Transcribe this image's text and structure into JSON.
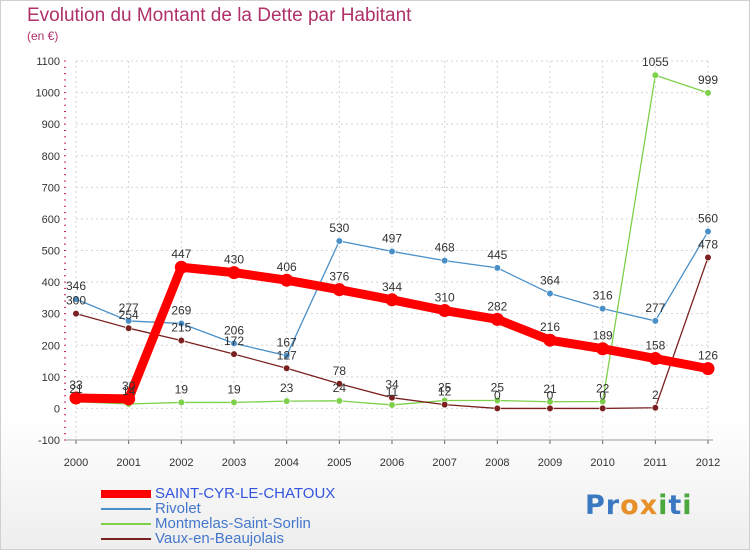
{
  "header": {
    "title": "Evolution du Montant de la Dette par Habitant",
    "subtitle": "(en €)"
  },
  "logo": {
    "text": "Proxiti",
    "letters": [
      "P",
      "r",
      "o",
      "x",
      "i",
      "t",
      "i"
    ],
    "letter_colors": [
      "#3a78c2",
      "#3a78c2",
      "#e7902a",
      "#e7902a",
      "#4aa83d",
      "#3a78c2",
      "#4aa83d"
    ]
  },
  "chart_data": {
    "type": "line",
    "title": "Evolution du Montant de la Dette par Habitant",
    "subtitle": "(en €)",
    "xlabel": "",
    "ylabel": "",
    "x": [
      "2000",
      "2001",
      "2002",
      "2003",
      "2004",
      "2005",
      "2006",
      "2007",
      "2008",
      "2009",
      "2010",
      "2011",
      "2012"
    ],
    "y_ticks": [
      "-100",
      "0",
      "100",
      "200",
      "300",
      "400",
      "500",
      "600",
      "700",
      "800",
      "900",
      "1000",
      "1100"
    ],
    "ylim": [
      -100,
      1100
    ],
    "grid": true,
    "legend_position": "bottom-left",
    "series": [
      {
        "name": "SAINT-CYR-LE-CHATOUX",
        "color": "#ff0000",
        "thick": true,
        "values": [
          33,
          30,
          447,
          430,
          406,
          376,
          344,
          310,
          282,
          216,
          189,
          158,
          126
        ],
        "labels": [
          "33",
          "30",
          "447",
          "430",
          "406",
          "376",
          "344",
          "310",
          "282",
          "216",
          "189",
          "158",
          "126"
        ]
      },
      {
        "name": "Rivolet",
        "color": "#4a90c8",
        "thick": false,
        "values": [
          346,
          277,
          269,
          206,
          167,
          530,
          497,
          468,
          445,
          364,
          316,
          277,
          560
        ],
        "labels": [
          "346",
          "277",
          "269",
          "206",
          "167",
          "530",
          "497",
          "468",
          "445",
          "364",
          "316",
          "277",
          "560"
        ]
      },
      {
        "name": "Montmelas-Saint-Sorlin",
        "color": "#7ed04a",
        "thick": false,
        "values": [
          21,
          14,
          19,
          19,
          23,
          24,
          11,
          25,
          25,
          21,
          22,
          1055,
          999
        ],
        "labels": [
          "21",
          "14",
          "19",
          "19",
          "23",
          "24",
          "11",
          "25",
          "25",
          "21",
          "22",
          "1055",
          "999"
        ]
      },
      {
        "name": "Vaux-en-Beaujolais",
        "color": "#7a2020",
        "thick": false,
        "values": [
          300,
          254,
          215,
          172,
          127,
          78,
          34,
          12,
          0,
          0,
          0,
          2,
          478
        ],
        "labels": [
          "300",
          "254",
          "215",
          "172",
          "127",
          "78",
          "34",
          "12",
          "0",
          "0",
          "0",
          "2",
          "478"
        ]
      }
    ]
  }
}
